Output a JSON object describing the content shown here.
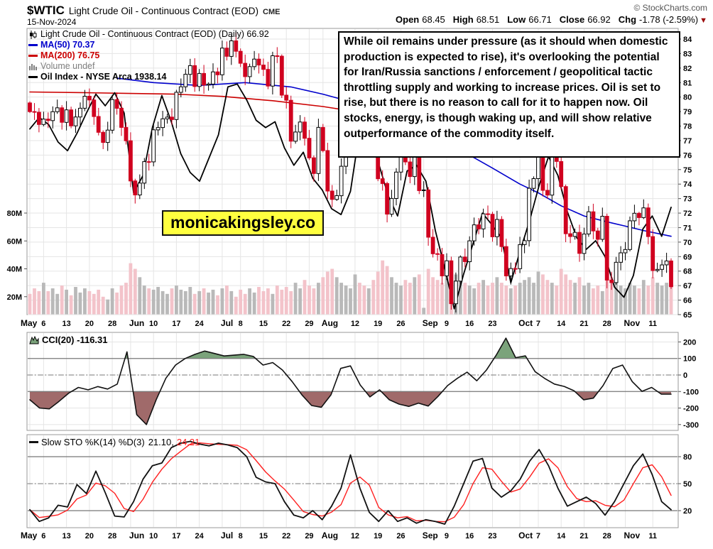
{
  "header": {
    "symbol": "$WTIC",
    "title": "Light Crude Oil - Continuous Contract (EOD)",
    "exchange": "CME",
    "date": "15-Nov-2024",
    "copyright": "© StockCharts.com",
    "quote": [
      {
        "label": "Open",
        "value": "68.45"
      },
      {
        "label": "High",
        "value": "68.51"
      },
      {
        "label": "Low",
        "value": "66.71"
      },
      {
        "label": "Close",
        "value": "66.92"
      },
      {
        "label": "Chg",
        "value": "-1.78 (-2.59%)"
      }
    ],
    "chg_arrow": "▼"
  },
  "legend": {
    "main": "Light Crude Oil - Continuous Contract (EOD) (Daily) 66.92",
    "ma50": "MA(50) 70.37",
    "ma200": "MA(200) 76.75",
    "volume": "Volume undef",
    "oil_index": "Oil Index - NYSE Arca 1938.14"
  },
  "annotation_text": "While oil remains under pressure (as it should when domestic production is expected to rise), it's overlooking the potential for Iran/Russia sanctions / enforcement / geopolitical tactic throttling supply and working to increase prices. Oil is set to rise, but there is no reason to call for it to happen now. Oil stocks, energy, is though waking up, and will show relative outperformance of the commodity itself.",
  "watermark": "monicakingsley.co",
  "panels": {
    "cci_label": "CCI(20) -116.31",
    "sto_label": "Slow STO %K(14) %D(3)",
    "sto_k": "21.10,",
    "sto_d": "24.21"
  },
  "colors": {
    "candle_down": "#d0001f",
    "candle_up_fill": "#ffffff",
    "candle_up_stroke": "#000000",
    "ma50": "#0000cc",
    "ma200": "#cc0000",
    "oil_index": "#000000",
    "volume_down": "#f3c3ca",
    "volume_up": "#b9b9b9",
    "cci_line": "#111111",
    "cci_fill_above": "#7ba37b",
    "cci_fill_below": "#a06a6a",
    "sto_k": "#111111",
    "sto_d": "#ff2020",
    "grid": "#e5e5e5",
    "frame": "#999999",
    "threshold": "#777777",
    "chg_arrow_color": "#990000"
  },
  "chart_data": [
    {
      "type": "candlestick",
      "title": "Light Crude Oil - Continuous Contract (EOD) (Daily)",
      "last_close": 66.92,
      "ylim": [
        64.7,
        84.7
      ],
      "y_ticks": [
        84,
        83,
        82,
        81,
        80,
        79,
        78,
        77,
        76,
        75,
        74,
        73,
        72,
        71,
        70,
        69,
        68,
        67,
        66,
        65
      ],
      "volume_ticks": [
        {
          "v": 80,
          "label": "80M"
        },
        {
          "v": 60,
          "label": "60M"
        },
        {
          "v": 40,
          "label": "40M"
        },
        {
          "v": 20,
          "label": "20M"
        }
      ],
      "x_ticks": [
        {
          "label": "May",
          "i": 0,
          "month": true
        },
        {
          "label": "6",
          "i": 3
        },
        {
          "label": "13",
          "i": 8
        },
        {
          "label": "20",
          "i": 13
        },
        {
          "label": "28",
          "i": 18
        },
        {
          "label": "Jun",
          "i": 22,
          "month": true
        },
        {
          "label": "10",
          "i": 27
        },
        {
          "label": "17",
          "i": 32
        },
        {
          "label": "24",
          "i": 37
        },
        {
          "label": "Jul",
          "i": 42,
          "month": true
        },
        {
          "label": "8",
          "i": 46
        },
        {
          "label": "15",
          "i": 51
        },
        {
          "label": "22",
          "i": 56
        },
        {
          "label": "29",
          "i": 61
        },
        {
          "label": "Aug",
          "i": 64,
          "month": true
        },
        {
          "label": "12",
          "i": 71
        },
        {
          "label": "19",
          "i": 76
        },
        {
          "label": "26",
          "i": 81
        },
        {
          "label": "Sep",
          "i": 86,
          "month": true
        },
        {
          "label": "9",
          "i": 91
        },
        {
          "label": "16",
          "i": 96
        },
        {
          "label": "23",
          "i": 101
        },
        {
          "label": "Oct",
          "i": 107,
          "month": true
        },
        {
          "label": "7",
          "i": 111
        },
        {
          "label": "14",
          "i": 116
        },
        {
          "label": "21",
          "i": 121
        },
        {
          "label": "28",
          "i": 126
        },
        {
          "label": "Nov",
          "i": 130,
          "month": true
        },
        {
          "label": "11",
          "i": 136
        }
      ],
      "closes": [
        79.0,
        78.95,
        78.11,
        78.48,
        78.38,
        78.99,
        79.26,
        78.26,
        79.12,
        78.02,
        78.63,
        79.23,
        80.06,
        79.8,
        78.66,
        77.57,
        76.87,
        77.72,
        79.83,
        79.23,
        77.91,
        76.99,
        74.22,
        73.25,
        74.07,
        75.55,
        75.53,
        77.74,
        77.9,
        78.5,
        78.62,
        78.45,
        80.33,
        80.71,
        81.57,
        82.17,
        80.73,
        81.63,
        80.83,
        80.9,
        81.74,
        81.54,
        83.38,
        82.81,
        83.88,
        83.16,
        82.33,
        81.41,
        82.1,
        82.62,
        82.21,
        81.91,
        80.76,
        82.85,
        82.82,
        80.13,
        79.78,
        76.96,
        77.59,
        78.28,
        77.16,
        75.81,
        74.73,
        77.91,
        76.31,
        73.52,
        72.94,
        73.2,
        75.23,
        76.19,
        76.84,
        80.06,
        78.35,
        77.98,
        78.16,
        76.65,
        74.37,
        74.04,
        71.93,
        73.01,
        74.83,
        77.42,
        75.53,
        74.52,
        75.91,
        73.55,
        73.6,
        70.34,
        69.2,
        69.15,
        67.67,
        68.71,
        65.75,
        67.31,
        68.97,
        68.65,
        70.09,
        71.19,
        70.91,
        71.95,
        71.92,
        70.37,
        71.56,
        69.69,
        67.67,
        68.18,
        68.17,
        69.83,
        70.1,
        73.71,
        74.38,
        77.14,
        73.57,
        73.24,
        75.85,
        75.56,
        73.83,
        70.58,
        70.39,
        70.67,
        69.22,
        70.56,
        72.09,
        70.77,
        70.19,
        71.78,
        67.38,
        67.21,
        68.61,
        69.26,
        69.49,
        71.47,
        71.99,
        71.69,
        72.36,
        70.38,
        68.04,
        68.12,
        68.43,
        68.7,
        66.92
      ],
      "volumes_millions": [
        22,
        26,
        24,
        30,
        24,
        26,
        22,
        28,
        25,
        21,
        27,
        23,
        26,
        24,
        22,
        25,
        20,
        18,
        26,
        23,
        28,
        30,
        44,
        40,
        34,
        28,
        26,
        25,
        27,
        24,
        22,
        26,
        28,
        25,
        24,
        27,
        22,
        24,
        26,
        23,
        25,
        21,
        26,
        28,
        24,
        20,
        25,
        22,
        26,
        23,
        27,
        24,
        26,
        22,
        28,
        25,
        27,
        24,
        30,
        26,
        32,
        28,
        26,
        30,
        34,
        38,
        40,
        34,
        30,
        28,
        26,
        36,
        30,
        28,
        26,
        32,
        38,
        46,
        42,
        34,
        30,
        28,
        32,
        30,
        34,
        36,
        12,
        40,
        34,
        32,
        30,
        38,
        44,
        36,
        32,
        30,
        28,
        26,
        30,
        32,
        28,
        30,
        34,
        30,
        28,
        26,
        28,
        30,
        32,
        34,
        30,
        38,
        36,
        32,
        30,
        28,
        40,
        36,
        32,
        30,
        34,
        28,
        30,
        26,
        28,
        24,
        36,
        34,
        30,
        28,
        26,
        30,
        28,
        26,
        32,
        28,
        34,
        30,
        28,
        30,
        35
      ],
      "overlays": {
        "ma50": {
          "label": "MA(50)",
          "last": 70.37,
          "points": [
            [
              19,
              81.3
            ],
            [
              27,
              81.0
            ],
            [
              37,
              80.8
            ],
            [
              47,
              81.0
            ],
            [
              57,
              80.7
            ],
            [
              64,
              80.2
            ],
            [
              71,
              79.6
            ],
            [
              76,
              79.1
            ],
            [
              81,
              78.4
            ],
            [
              86,
              77.9
            ],
            [
              91,
              76.9
            ],
            [
              96,
              76.0
            ],
            [
              101,
              75.1
            ],
            [
              107,
              74.0
            ],
            [
              111,
              73.4
            ],
            [
              116,
              72.5
            ],
            [
              121,
              71.8
            ],
            [
              126,
              71.4
            ],
            [
              130,
              71.1
            ],
            [
              134,
              70.8
            ],
            [
              140,
              70.4
            ]
          ]
        },
        "ma200": {
          "label": "MA(200)",
          "last": 76.75,
          "points": [
            [
              0,
              80.35
            ],
            [
              13,
              80.3
            ],
            [
              22,
              80.25
            ],
            [
              32,
              80.2
            ],
            [
              42,
              80.05
            ],
            [
              53,
              79.75
            ],
            [
              64,
              79.35
            ],
            [
              73,
              78.9
            ],
            [
              81,
              78.4
            ],
            [
              86,
              78.0
            ],
            [
              93,
              77.6
            ],
            [
              101,
              77.3
            ],
            [
              107,
              77.15
            ],
            [
              116,
              77.0
            ],
            [
              126,
              76.9
            ],
            [
              134,
              76.8
            ],
            [
              140,
              76.75
            ]
          ]
        },
        "oil_index": {
          "label": "Oil Index - NYSE Arca",
          "last": 1938.14,
          "values_price_scale": [
            77.8,
            78.6,
            78.1,
            76.9,
            76.3,
            77.5,
            78.9,
            80.2,
            79.4,
            80.3,
            78.9,
            73.4,
            74.6,
            77.9,
            80.1,
            78.3,
            76.1,
            74.8,
            74.2,
            75.8,
            77.4,
            80.7,
            80.9,
            79.8,
            78.4,
            77.9,
            78.3,
            76.5,
            75.3,
            76.2,
            74.4,
            73.6,
            72.3,
            71.9,
            73.5,
            77.8,
            77.2,
            75.4,
            73.2,
            71.8,
            74.9,
            75.3,
            74.2,
            70.8,
            68.2,
            65.4,
            67.8,
            69.9,
            72.0,
            71.2,
            70.3,
            67.2,
            69.4,
            71.5,
            73.9,
            75.9,
            74.6,
            72.1,
            70.3,
            69.5,
            70.1,
            69.0,
            66.9,
            66.2,
            67.7,
            70.9,
            71.8,
            70.4,
            72.4
          ]
        }
      }
    },
    {
      "type": "line",
      "name": "CCI(20)",
      "last": -116.31,
      "ylim": [
        -350,
        260
      ],
      "y_ticks": [
        200,
        100,
        0,
        -100,
        -200,
        -300
      ],
      "thresholds": {
        "upper": 100,
        "lower": -100,
        "mid": 0
      },
      "values": [
        -150,
        -200,
        -205,
        -160,
        -110,
        -75,
        -90,
        -70,
        -85,
        -55,
        140,
        -240,
        -300,
        -150,
        -20,
        60,
        100,
        125,
        145,
        130,
        115,
        120,
        125,
        112,
        60,
        75,
        30,
        -40,
        -120,
        -185,
        -195,
        -120,
        40,
        55,
        -60,
        -133,
        -90,
        -150,
        -176,
        -190,
        -170,
        -188,
        -130,
        -64,
        -20,
        17,
        -35,
        30,
        120,
        223,
        105,
        116,
        20,
        -21,
        -55,
        -69,
        -95,
        -150,
        -140,
        -64,
        39,
        60,
        -40,
        -99,
        -75,
        -116,
        -116
      ]
    },
    {
      "type": "line",
      "name": "Slow STO %K(14) %D(3)",
      "k_last": 21.1,
      "d_last": 24.21,
      "ylim": [
        0,
        100
      ],
      "y_ticks": [
        80,
        50,
        20
      ],
      "thresholds": {
        "upper": 80,
        "lower": 20,
        "mid": 50
      },
      "k_values": [
        21,
        8,
        12,
        26,
        24,
        49,
        39,
        64,
        40,
        14,
        13,
        30,
        55,
        70,
        73,
        90,
        95,
        97,
        94,
        92,
        95,
        93,
        90,
        80,
        57,
        52,
        50,
        30,
        15,
        12,
        20,
        10,
        25,
        45,
        82,
        45,
        18,
        8,
        20,
        8,
        12,
        6,
        10,
        8,
        5,
        25,
        50,
        75,
        78,
        45,
        35,
        42,
        55,
        75,
        88,
        70,
        45,
        25,
        30,
        35,
        28,
        15,
        30,
        50,
        70,
        83,
        60,
        30,
        21
      ]
    }
  ]
}
